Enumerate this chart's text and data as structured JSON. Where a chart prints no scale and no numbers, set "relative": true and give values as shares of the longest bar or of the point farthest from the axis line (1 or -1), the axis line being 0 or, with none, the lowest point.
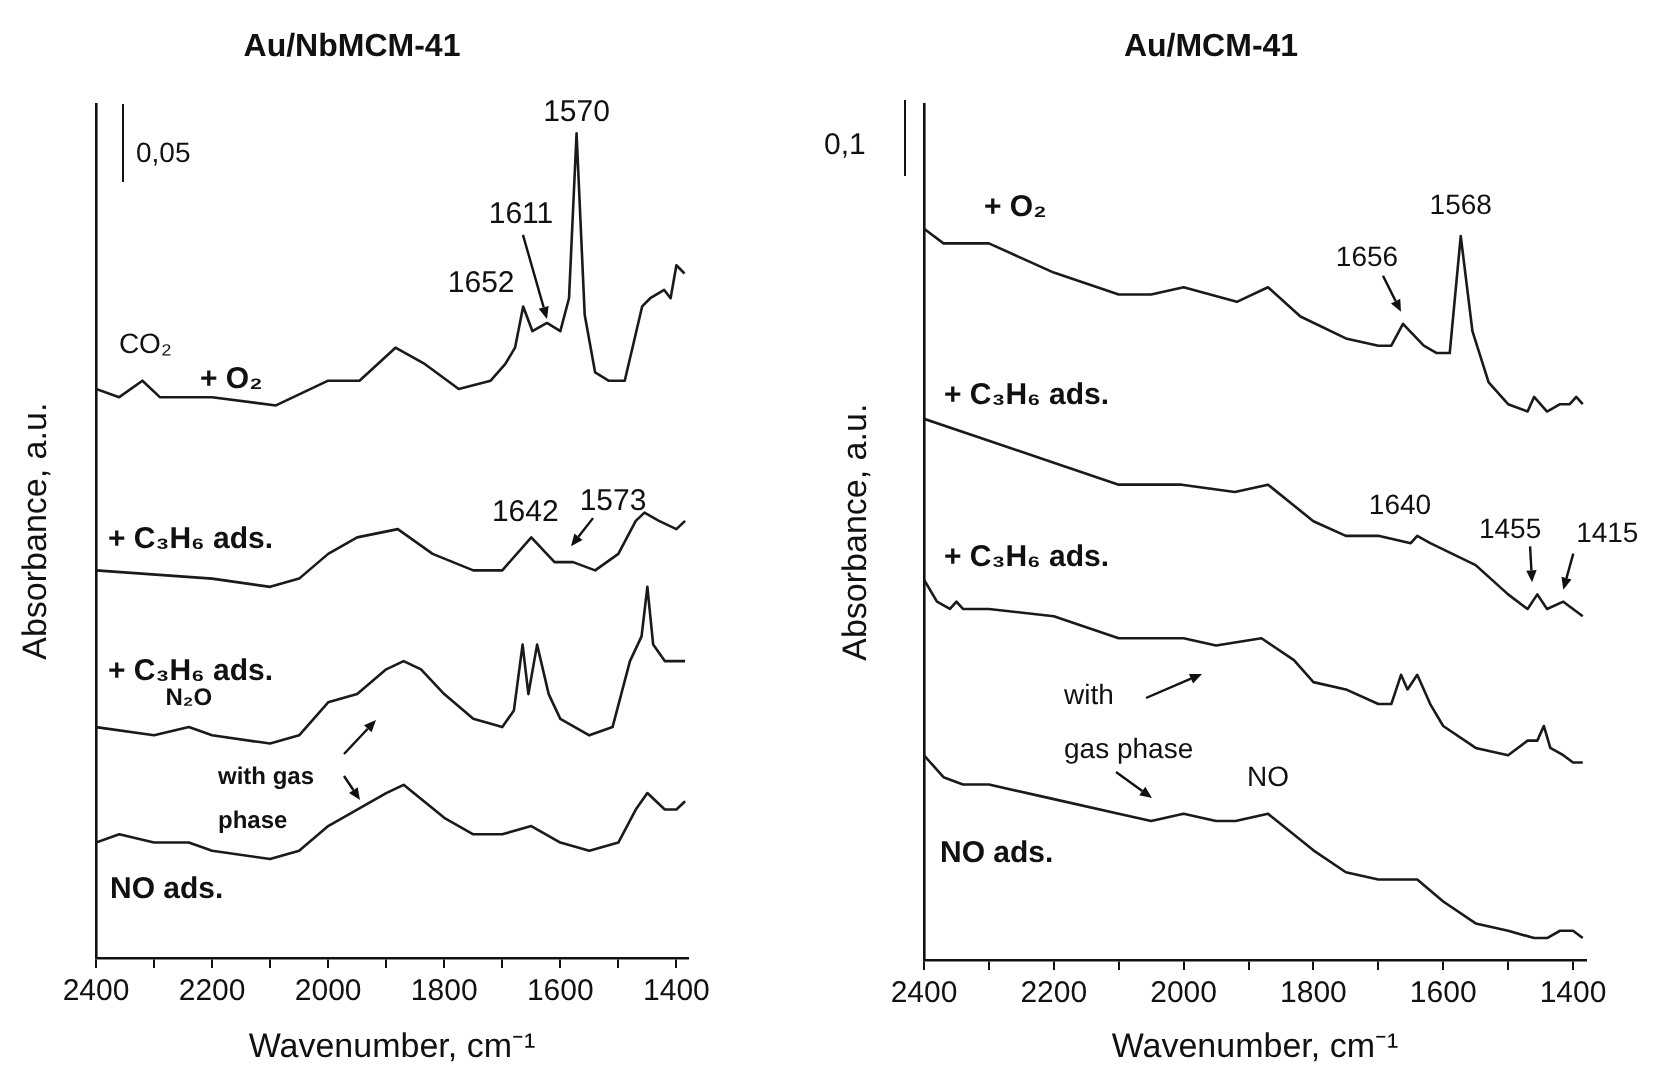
{
  "chart_data": [
    {
      "type": "line",
      "title": "Au/NbMCM-41",
      "xlabel": "Wavenumber, cm⁻¹",
      "ylabel": "Absorbance, a.u.",
      "relative": true,
      "xlim": [
        2400,
        1380
      ],
      "xticks": [
        2400,
        {
          "value": 2300,
          "label": null
        },
        2200,
        {
          "value": 2100,
          "label": null
        },
        2000,
        {
          "value": 1900,
          "label": null
        },
        1800,
        {
          "value": 1700,
          "label": null
        },
        1600,
        {
          "value": 1500,
          "label": null
        },
        1400
      ],
      "marker": "none",
      "line_style": "solid",
      "series": [
        {
          "name": "+ O₂",
          "color": "#1a1a1a",
          "x": [
            2400,
            2360,
            2320,
            2290,
            2200,
            2090,
            2000,
            1946,
            1884,
            1833,
            1775,
            1720,
            1695,
            1678,
            1664,
            1648,
            1623,
            1600,
            1585,
            1572,
            1558,
            1540,
            1517,
            1489,
            1459,
            1445,
            1421,
            1410,
            1400,
            1386
          ],
          "values": [
            0.69,
            0.68,
            0.7,
            0.68,
            0.68,
            0.67,
            0.7,
            0.7,
            0.74,
            0.72,
            0.69,
            0.7,
            0.72,
            0.74,
            0.79,
            0.76,
            0.77,
            0.76,
            0.8,
            1,
            0.78,
            0.71,
            0.7,
            0.7,
            0.79,
            0.8,
            0.81,
            0.8,
            0.84,
            0.83
          ]
        },
        {
          "name": "+ C₃H₆ ads.",
          "color": "#1a1a1a",
          "x": [
            2400,
            2200,
            2100,
            2050,
            2000,
            1950,
            1880,
            1820,
            1750,
            1700,
            1650,
            1610,
            1578,
            1540,
            1500,
            1470,
            1455,
            1430,
            1400,
            1385
          ],
          "values": [
            0.47,
            0.46,
            0.45,
            0.46,
            0.49,
            0.51,
            0.52,
            0.49,
            0.47,
            0.47,
            0.51,
            0.48,
            0.48,
            0.47,
            0.49,
            0.53,
            0.54,
            0.53,
            0.52,
            0.53
          ]
        },
        {
          "name": "+ C₃H₆ ads.",
          "color": "#1a1a1a",
          "x": [
            2400,
            2300,
            2240,
            2200,
            2100,
            2050,
            2000,
            1950,
            1900,
            1870,
            1840,
            1800,
            1750,
            1700,
            1680,
            1665,
            1655,
            1640,
            1620,
            1600,
            1550,
            1510,
            1480,
            1460,
            1450,
            1440,
            1420,
            1400,
            1385
          ],
          "values": [
            0.28,
            0.27,
            0.28,
            0.27,
            0.26,
            0.27,
            0.31,
            0.32,
            0.35,
            0.36,
            0.35,
            0.32,
            0.29,
            0.28,
            0.3,
            0.38,
            0.32,
            0.38,
            0.32,
            0.29,
            0.27,
            0.28,
            0.36,
            0.39,
            0.45,
            0.38,
            0.36,
            0.36,
            0.36
          ]
        },
        {
          "name": "NO ads.",
          "color": "#1a1a1a",
          "x": [
            2400,
            2360,
            2300,
            2240,
            2200,
            2100,
            2050,
            2000,
            1950,
            1900,
            1870,
            1800,
            1750,
            1700,
            1650,
            1600,
            1550,
            1500,
            1470,
            1450,
            1420,
            1400,
            1385
          ],
          "values": [
            0.14,
            0.15,
            0.14,
            0.14,
            0.13,
            0.12,
            0.13,
            0.16,
            0.18,
            0.2,
            0.21,
            0.17,
            0.15,
            0.15,
            0.16,
            0.14,
            0.13,
            0.14,
            0.18,
            0.2,
            0.18,
            0.18,
            0.19
          ]
        }
      ],
      "annotations": [
        {
          "text": "1570",
          "x": 1572,
          "y": 1
        },
        {
          "text": "1611",
          "x": 1623,
          "y": 0.77
        },
        {
          "text": "1652",
          "x": 1664,
          "y": 0.79
        },
        {
          "text": "CO₂",
          "x": 2315,
          "y": 0.7
        },
        {
          "text": "1642",
          "x": 1650,
          "y": 0.51
        },
        {
          "text": "1573",
          "x": 1585,
          "y": 0.48
        },
        {
          "text": "N₂O",
          "x": 2240,
          "y": 0.28
        },
        "with gas phase",
        "0,05"
      ]
    },
    {
      "type": "line",
      "title": "Au/MCM-41",
      "xlabel": "Wavenumber, cm⁻¹",
      "ylabel": "Absorbance, a.u.",
      "relative": true,
      "xlim": [
        2400,
        1380
      ],
      "xticks": [
        2400,
        {
          "value": 2300,
          "label": null
        },
        2200,
        {
          "value": 2100,
          "label": null
        },
        2000,
        {
          "value": 1900,
          "label": null
        },
        1800,
        {
          "value": 1700,
          "label": null
        },
        1600,
        {
          "value": 1500,
          "label": null
        },
        1400
      ],
      "marker": "none",
      "line_style": "solid",
      "series": [
        {
          "name": "+ O₂",
          "color": "#1a1a1a",
          "x": [
            2400,
            2370,
            2300,
            2200,
            2100,
            2050,
            2000,
            1918,
            1870,
            1820,
            1750,
            1700,
            1680,
            1662,
            1630,
            1610,
            1590,
            1573,
            1555,
            1530,
            1500,
            1470,
            1460,
            1440,
            1420,
            1405,
            1395,
            1385
          ],
          "values": [
            1,
            0.98,
            0.98,
            0.94,
            0.91,
            0.91,
            0.92,
            0.9,
            0.92,
            0.88,
            0.85,
            0.84,
            0.84,
            0.87,
            0.84,
            0.83,
            0.83,
            0.99,
            0.86,
            0.79,
            0.76,
            0.75,
            0.77,
            0.75,
            0.76,
            0.76,
            0.77,
            0.76
          ]
        },
        {
          "name": "+ C₃H₆ ads.",
          "color": "#1a1a1a",
          "x": [
            2400,
            2300,
            2200,
            2100,
            2003,
            1921,
            1870,
            1800,
            1750,
            1700,
            1650,
            1640,
            1620,
            1550,
            1500,
            1470,
            1455,
            1440,
            1415,
            1400,
            1385
          ],
          "values": [
            0.74,
            0.71,
            0.68,
            0.65,
            0.65,
            0.64,
            0.65,
            0.6,
            0.58,
            0.58,
            0.57,
            0.58,
            0.57,
            0.54,
            0.5,
            0.48,
            0.5,
            0.48,
            0.49,
            0.48,
            0.47
          ]
        },
        {
          "name": "+ C₃H₆ ads.",
          "color": "#1a1a1a",
          "x": [
            2400,
            2380,
            2360,
            2350,
            2340,
            2300,
            2200,
            2100,
            2000,
            1950,
            1880,
            1830,
            1800,
            1750,
            1700,
            1680,
            1665,
            1655,
            1640,
            1620,
            1600,
            1550,
            1500,
            1470,
            1455,
            1445,
            1435,
            1415,
            1400,
            1385
          ],
          "values": [
            0.52,
            0.49,
            0.48,
            0.49,
            0.48,
            0.48,
            0.47,
            0.44,
            0.44,
            0.43,
            0.44,
            0.41,
            0.38,
            0.37,
            0.35,
            0.35,
            0.39,
            0.37,
            0.39,
            0.35,
            0.32,
            0.29,
            0.28,
            0.3,
            0.3,
            0.32,
            0.29,
            0.28,
            0.27,
            0.27
          ]
        },
        {
          "name": "NO ads.",
          "color": "#1a1a1a",
          "x": [
            2400,
            2370,
            2340,
            2300,
            2200,
            2100,
            2050,
            2000,
            1950,
            1920,
            1870,
            1800,
            1750,
            1700,
            1640,
            1600,
            1550,
            1500,
            1460,
            1440,
            1420,
            1400,
            1385
          ],
          "values": [
            0.28,
            0.25,
            0.24,
            0.24,
            0.22,
            0.2,
            0.19,
            0.2,
            0.19,
            0.19,
            0.2,
            0.15,
            0.12,
            0.11,
            0.11,
            0.08,
            0.05,
            0.04,
            0.03,
            0.03,
            0.04,
            0.04,
            0.03
          ]
        }
      ],
      "annotations": [
        {
          "text": "1568",
          "x": 1573,
          "y": 0.99
        },
        {
          "text": "1656",
          "x": 1662,
          "y": 0.87
        },
        {
          "text": "1640",
          "x": 1645,
          "y": 0.58
        },
        {
          "text": "1455",
          "x": 1460,
          "y": 0.5
        },
        {
          "text": "1415",
          "x": 1415,
          "y": 0.49
        },
        {
          "text": "NO",
          "x": 1870,
          "y": 0.2
        },
        "with gas phase",
        "0,1"
      ]
    }
  ]
}
